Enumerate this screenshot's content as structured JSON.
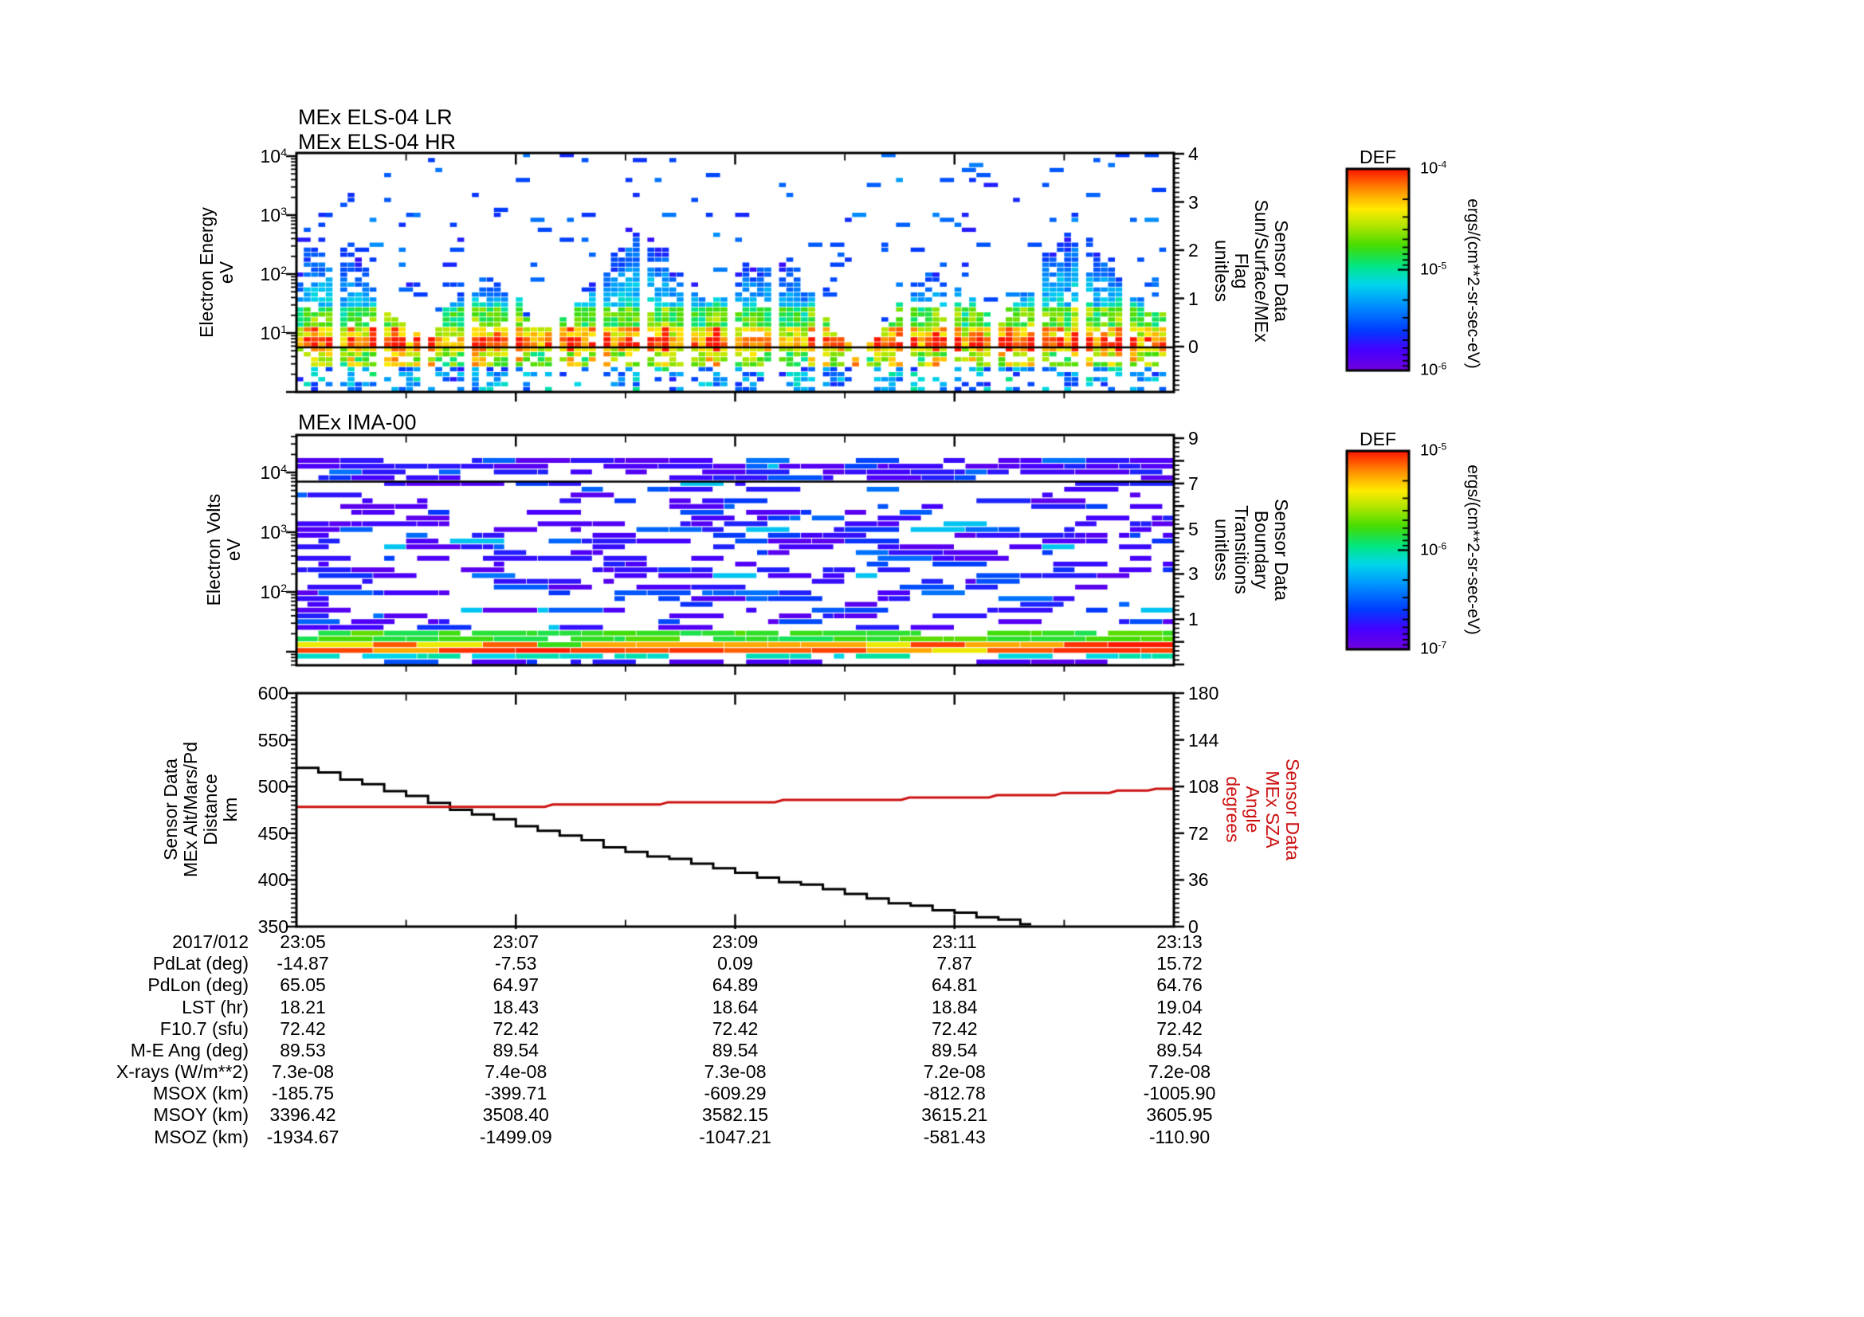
{
  "ui": {
    "els": {
      "title_lr": "MEx ELS-04 LR",
      "title_hr": "MEx ELS-04 HR",
      "ylabel_lines": [
        "Electron Energy",
        "eV"
      ],
      "ytick_labels": [
        "10^4",
        "10^3",
        "10^2",
        "10^1"
      ],
      "right_label_lines": [
        "Sensor Data",
        "Sun/Surface/MEx",
        "Flag",
        "unitless"
      ],
      "right_tick_labels": [
        "4",
        "3",
        "2",
        "1",
        "0"
      ]
    },
    "ima": {
      "title": "MEx IMA-00",
      "ylabel_lines": [
        "Electron Volts",
        "eV"
      ],
      "ytick_labels": [
        "10^4",
        "10^3",
        "10^2"
      ],
      "right_label_lines": [
        "Sensor Data",
        "Boundary",
        "Transitions",
        "unitless"
      ],
      "right_tick_labels": [
        "9",
        "7",
        "5",
        "3",
        "1"
      ]
    },
    "altsza": {
      "left_label_lines": [
        "Sensor Data",
        "MEx Alt/Mars/Pd",
        "Distance",
        "km"
      ],
      "left_tick_labels": [
        "600",
        "550",
        "500",
        "450",
        "400",
        "350"
      ],
      "right_label_lines": [
        "Sensor Data",
        "MEx SZA",
        "Angle",
        "degrees"
      ],
      "right_tick_labels": [
        "180",
        "144",
        "108",
        "72",
        "36",
        "0"
      ]
    },
    "colorbars": [
      {
        "title": "DEF",
        "tick_labels": [
          "10^-4",
          "10^-5",
          "10^-6"
        ],
        "unit": "ergs/(cm**2-sr-sec-eV)"
      },
      {
        "title": "DEF",
        "tick_labels": [
          "10^-5",
          "10^-6",
          "10^-7"
        ],
        "unit": "ergs/(cm**2-sr-sec-eV)"
      }
    ],
    "colors": {
      "sza_red": "#cc1111",
      "line_black": "#000000"
    }
  },
  "chart_data": [
    {
      "type": "heatmap",
      "panel": "els",
      "title": [
        "MEx ELS-04 LR",
        "MEx ELS-04 HR"
      ],
      "x_range": [
        "23:05",
        "23:13"
      ],
      "y_axis": {
        "label": "Electron Energy (eV)",
        "scale": "log",
        "range": [
          1,
          10000
        ]
      },
      "right_axis": {
        "label": "Sensor Data Sun/Surface/MEx Flag (unitless)",
        "range": [
          -1,
          4
        ],
        "flag_line_value": 0
      },
      "color_axis": {
        "label": "DEF ergs/(cm**2-sr-sec-eV)",
        "scale": "log",
        "range": [
          1e-06,
          0.0001
        ]
      },
      "pattern": {
        "peak_band_eV": [
          5,
          11
        ],
        "envelope_top_eV": [
          30,
          400
        ],
        "speck_max_eV": 10000,
        "data_gap_period_s": 30
      },
      "synth": {
        "seed": 20170112,
        "cols": 120,
        "rows": 48,
        "gap_every": 6
      }
    },
    {
      "type": "heatmap",
      "panel": "ima",
      "title": [
        "MEx IMA-00"
      ],
      "x_range": [
        "23:05",
        "23:13"
      ],
      "y_axis": {
        "label": "Electron Volts (eV)",
        "scale": "log",
        "range": [
          6,
          42000
        ]
      },
      "right_axis": {
        "label": "Sensor Data Boundary Transitions (unitless)",
        "range": [
          -1,
          9
        ],
        "flag_line_value": 7
      },
      "color_axis": {
        "label": "DEF ergs/(cm**2-sr-sec-eV)",
        "scale": "log",
        "range": [
          1e-07,
          1e-05
        ]
      },
      "pattern": {
        "bright_band_eV": [
          10,
          15
        ],
        "scatter": "sparse purple and blue blocks at all energies",
        "empty_above_eV": 17000
      },
      "synth": {
        "seed": 777,
        "halfcols": 80,
        "rows": 40
      }
    },
    {
      "type": "line",
      "panel": "altsza",
      "x_axis": {
        "date": "2017/012",
        "tick_labels": [
          "23:05",
          "23:07",
          "23:09",
          "23:11",
          "23:13"
        ],
        "range_minutes": [
          0,
          8
        ]
      },
      "series": [
        {
          "name": "MEx Alt/Mars/Pd Distance",
          "unit": "km",
          "color": "#000000",
          "axis": "left",
          "axis_range": [
            350,
            600
          ],
          "style": "steps",
          "quantize": 2.5,
          "end_minute": 6.7,
          "keypoints": [
            [
              0,
              520.5
            ],
            [
              0.5,
              505
            ],
            [
              1,
              489
            ],
            [
              1.5,
              473
            ],
            [
              2,
              458
            ],
            [
              2.5,
              444
            ],
            [
              3,
              431
            ],
            [
              3.5,
              419
            ],
            [
              4,
              408
            ],
            [
              4.5,
              396
            ],
            [
              5,
              385
            ],
            [
              5.5,
              374
            ],
            [
              6,
              364
            ],
            [
              6.3,
              358
            ],
            [
              6.55,
              354
            ],
            [
              6.7,
              351.5
            ]
          ]
        },
        {
          "name": "MEx SZA Angle",
          "unit": "degrees",
          "color": "#cc1111",
          "axis": "right",
          "axis_range": [
            0,
            180
          ],
          "style": "steps",
          "steps": [
            [
              0,
              92.3
            ],
            [
              2.3,
              94.1
            ],
            [
              3.35,
              95.9
            ],
            [
              4.4,
              97.7
            ],
            [
              5.55,
              99.5
            ],
            [
              6.35,
              101.3
            ],
            [
              6.95,
              103.1
            ],
            [
              7.45,
              104.9
            ],
            [
              7.8,
              106.3
            ]
          ]
        }
      ],
      "footer_table": {
        "date": "2017/012",
        "times": [
          "23:05",
          "23:07",
          "23:09",
          "23:11",
          "23:13"
        ],
        "row_labels": [
          "PdLat (deg)",
          "PdLon (deg)",
          "LST (hr)",
          "F10.7 (sfu)",
          "M-E Ang (deg)",
          "X-rays (W/m**2)",
          "MSOX (km)",
          "MSOY (km)",
          "MSOZ (km)"
        ],
        "columns": [
          [
            "-14.87",
            "65.05",
            "18.21",
            "72.42",
            "89.53",
            "7.3e-08",
            "-185.75",
            "3396.42",
            "-1934.67"
          ],
          [
            "-7.53",
            "64.97",
            "18.43",
            "72.42",
            "89.54",
            "7.4e-08",
            "-399.71",
            "3508.40",
            "-1499.09"
          ],
          [
            "0.09",
            "64.89",
            "18.64",
            "72.42",
            "89.54",
            "7.3e-08",
            "-609.29",
            "3582.15",
            "-1047.21"
          ],
          [
            "7.87",
            "64.81",
            "18.84",
            "72.42",
            "89.54",
            "7.2e-08",
            "-812.78",
            "3615.21",
            "-581.43"
          ],
          [
            "15.72",
            "64.76",
            "19.04",
            "72.42",
            "89.54",
            "7.2e-08",
            "-1005.90",
            "3605.95",
            "-110.90"
          ]
        ]
      }
    }
  ]
}
